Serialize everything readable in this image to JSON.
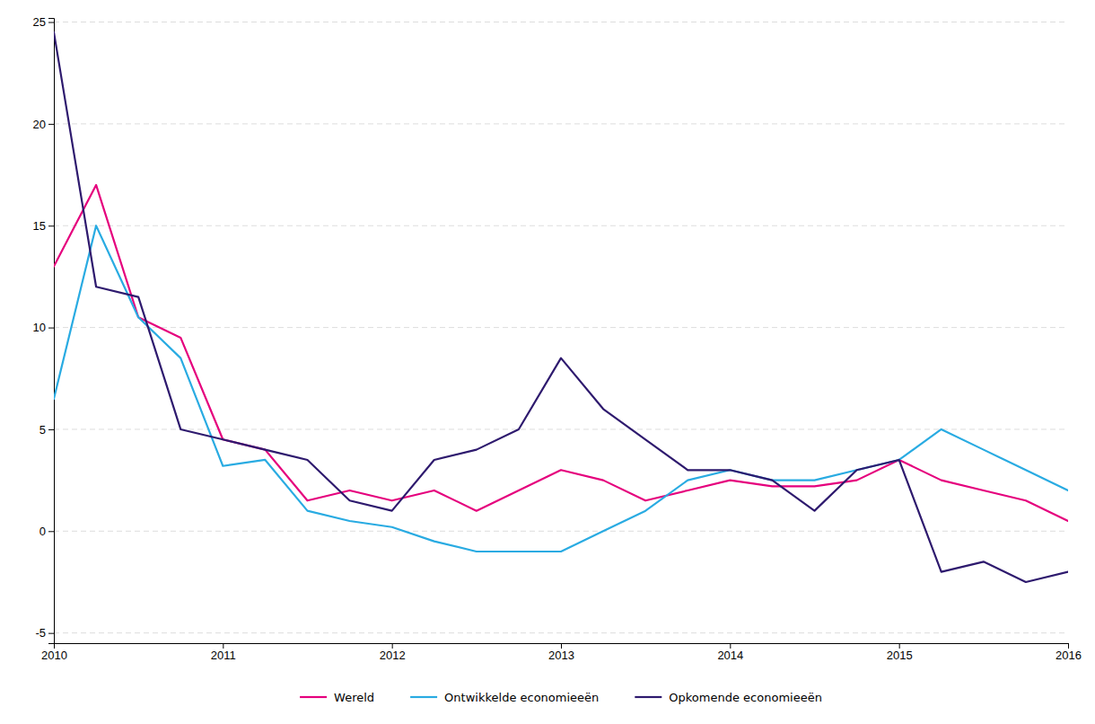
{
  "chart_data": {
    "type": "line",
    "x": [
      2010.0,
      2010.25,
      2010.5,
      2010.75,
      2011.0,
      2011.25,
      2011.5,
      2011.75,
      2012.0,
      2012.25,
      2012.5,
      2012.75,
      2013.0,
      2013.25,
      2013.5,
      2013.75,
      2014.0,
      2014.25,
      2014.5,
      2014.75,
      2015.0,
      2015.25,
      2015.5,
      2015.75,
      2016.0
    ],
    "series": [
      {
        "name": "Wereld",
        "color": "#e5007d",
        "values": [
          13.0,
          17.0,
          10.5,
          9.5,
          4.5,
          4.0,
          1.5,
          2.0,
          1.5,
          2.0,
          1.0,
          2.0,
          3.0,
          2.5,
          1.5,
          2.0,
          2.5,
          2.2,
          2.2,
          2.5,
          3.5,
          2.5,
          2.0,
          1.5,
          0.5
        ]
      },
      {
        "name": "Ontwikkelde economieeën",
        "color": "#29abe2",
        "values": [
          6.5,
          15.0,
          10.5,
          8.5,
          3.2,
          3.5,
          1.0,
          0.5,
          0.2,
          -0.5,
          -1.0,
          -1.0,
          -1.0,
          0.0,
          1.0,
          2.5,
          3.0,
          2.5,
          2.5,
          3.0,
          3.5,
          5.0,
          4.0,
          3.0,
          2.0
        ]
      },
      {
        "name": "Opkomende economieeën",
        "color": "#2e1a6e",
        "values": [
          24.5,
          12.0,
          11.5,
          5.0,
          4.5,
          4.0,
          3.5,
          1.5,
          1.0,
          3.5,
          4.0,
          5.0,
          8.5,
          6.0,
          4.5,
          3.0,
          3.0,
          2.5,
          1.0,
          3.0,
          3.5,
          -2.0,
          -1.5,
          -2.5,
          -2.0
        ]
      }
    ],
    "xlim": [
      2010,
      2016
    ],
    "xticks": [
      2010,
      2011,
      2012,
      2013,
      2014,
      2015,
      2016
    ],
    "ylim": [
      -5.5,
      25.2
    ],
    "yticks": [
      -5,
      0,
      5,
      10,
      15,
      20,
      25
    ],
    "grid": true,
    "legend": "bottom"
  }
}
